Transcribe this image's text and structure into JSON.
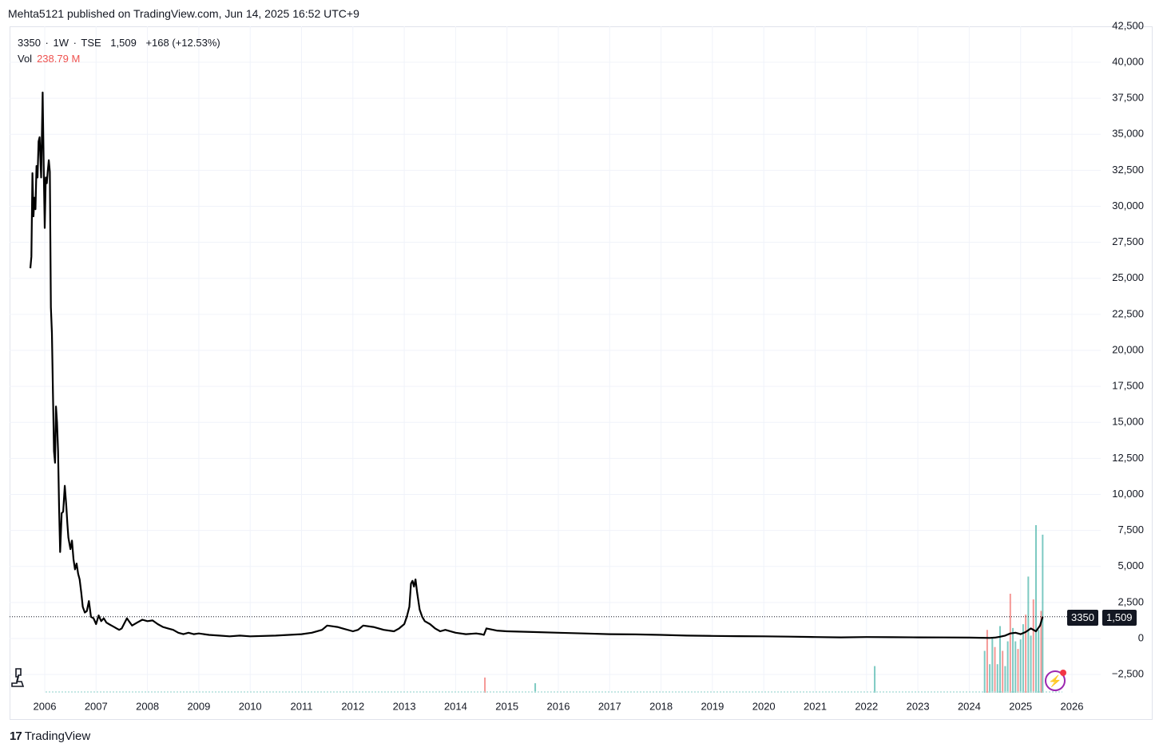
{
  "header": {
    "published": "Mehta5121 published on TradingView.com, Jun 14, 2025 16:52 UTC+9"
  },
  "legend": {
    "symbol": "3350",
    "sep1": "·",
    "interval": "1W",
    "sep2": "·",
    "exchange": "TSE",
    "last": "1,509",
    "change": "+168 (+12.53%)",
    "vol_label": "Vol",
    "vol_value": "238.79 M"
  },
  "price_tags": {
    "ticker": "3350",
    "value": "1,509"
  },
  "footer": {
    "brand": "TradingView",
    "logo_mark": "17"
  },
  "icons": {
    "bolt": "lightning-icon",
    "ruler": "measure-icon"
  },
  "colors": {
    "price_line": "#000000",
    "grid": "#f0f3fa",
    "vol_up": "#26a69a",
    "vol_down": "#ef5350",
    "vol_text": "#ef5350",
    "accent": "#9c27b0"
  },
  "chart_data": {
    "type": "line",
    "title": "",
    "xlabel": "",
    "ylabel": "",
    "x_tick_labels": [
      "2006",
      "2007",
      "2008",
      "2009",
      "2010",
      "2011",
      "2012",
      "2013",
      "2014",
      "2015",
      "2016",
      "2017",
      "2018",
      "2019",
      "2020",
      "2021",
      "2022",
      "2023",
      "2024",
      "2025",
      "2026"
    ],
    "y_tick_labels": [
      "42,500",
      "40,000",
      "37,500",
      "35,000",
      "32,500",
      "30,000",
      "27,500",
      "25,000",
      "22,500",
      "20,000",
      "17,500",
      "15,000",
      "12,500",
      "10,000",
      "7,500",
      "5,000",
      "2,500",
      "0",
      "−2,500"
    ],
    "ylim": [
      -3800,
      42500
    ],
    "xlim": [
      2005.75,
      2026.4
    ],
    "grid": true,
    "last_price": 1509,
    "series": [
      {
        "values_x": [
          2005.72,
          2005.74,
          2005.76,
          2005.78,
          2005.8,
          2005.82,
          2005.84,
          2005.86,
          2005.88,
          2005.9,
          2005.93,
          2005.96,
          2005.98,
          2006.0,
          2006.02,
          2006.04,
          2006.06,
          2006.08,
          2006.1,
          2006.12,
          2006.14,
          2006.16,
          2006.18,
          2006.2,
          2006.22,
          2006.24,
          2006.26,
          2006.28,
          2006.3,
          2006.33,
          2006.36,
          2006.39,
          2006.42,
          2006.44,
          2006.46,
          2006.48,
          2006.5,
          2006.53,
          2006.56,
          2006.59,
          2006.62,
          2006.65,
          2006.68,
          2006.71,
          2006.74,
          2006.78,
          2006.82,
          2006.86,
          2006.9,
          2006.95,
          2007.0,
          2007.05,
          2007.1,
          2007.15,
          2007.2,
          2007.25,
          2007.3,
          2007.35,
          2007.4,
          2007.45,
          2007.5,
          2007.6,
          2007.7,
          2007.8,
          2007.9,
          2008.0,
          2008.1,
          2008.2,
          2008.3,
          2008.4,
          2008.5,
          2008.6,
          2008.7,
          2008.8,
          2008.9,
          2009.0,
          2009.1,
          2009.2,
          2009.4,
          2009.6,
          2009.8,
          2010.0,
          2010.5,
          2011.0,
          2011.2,
          2011.4,
          2011.5,
          2011.6,
          2011.7,
          2011.8,
          2012.0,
          2012.1,
          2012.2,
          2012.4,
          2012.6,
          2012.8,
          2012.9,
          2013.0,
          2013.05,
          2013.1,
          2013.13,
          2013.16,
          2013.19,
          2013.22,
          2013.25,
          2013.3,
          2013.35,
          2013.4,
          2013.5,
          2013.6,
          2013.7,
          2013.8,
          2014.0,
          2014.2,
          2014.4,
          2014.5,
          2014.55,
          2014.6,
          2014.8,
          2015.0,
          2015.5,
          2016.0,
          2016.5,
          2017.0,
          2017.5,
          2018.0,
          2018.5,
          2019.0,
          2019.5,
          2020.0,
          2020.5,
          2021.0,
          2021.5,
          2022.0,
          2022.5,
          2023.0,
          2023.5,
          2024.0,
          2024.2,
          2024.4,
          2024.5,
          2024.6,
          2024.7,
          2024.8,
          2024.9,
          2025.0,
          2025.1,
          2025.2,
          2025.3,
          2025.38,
          2025.43
        ],
        "values_y": [
          25700,
          26500,
          32300,
          29300,
          30600,
          29800,
          32800,
          32000,
          34500,
          34800,
          32000,
          37900,
          32800,
          28500,
          32000,
          31600,
          32500,
          33200,
          32400,
          23000,
          21200,
          17000,
          13000,
          12200,
          16100,
          15000,
          13000,
          9000,
          6000,
          8700,
          8800,
          10600,
          9200,
          8000,
          7000,
          6600,
          6200,
          6800,
          5500,
          4800,
          5200,
          4500,
          4100,
          3200,
          2200,
          1800,
          1900,
          2600,
          1500,
          1400,
          1000,
          1600,
          1200,
          1400,
          1100,
          1000,
          900,
          800,
          700,
          600,
          700,
          1400,
          900,
          1100,
          1300,
          1200,
          1250,
          1000,
          800,
          700,
          600,
          400,
          300,
          400,
          300,
          350,
          300,
          250,
          200,
          150,
          200,
          150,
          200,
          300,
          400,
          600,
          900,
          850,
          800,
          700,
          500,
          600,
          900,
          800,
          600,
          500,
          700,
          1000,
          1500,
          2200,
          3800,
          4000,
          3600,
          4100,
          3200,
          2000,
          1500,
          1200,
          1000,
          700,
          500,
          600,
          400,
          300,
          350,
          300,
          250,
          700,
          550,
          500,
          450,
          400,
          350,
          300,
          280,
          250,
          200,
          180,
          160,
          150,
          130,
          100,
          80,
          100,
          90,
          80,
          70,
          60,
          50,
          40,
          60,
          120,
          200,
          350,
          400,
          300,
          450,
          700,
          500,
          900,
          1509
        ]
      }
    ],
    "volume": {
      "values_x": [
        2024.3,
        2024.35,
        2024.4,
        2024.45,
        2024.5,
        2024.55,
        2024.6,
        2024.65,
        2024.7,
        2024.75,
        2024.8,
        2024.85,
        2024.9,
        2024.95,
        2025.0,
        2025.05,
        2025.1,
        2025.15,
        2025.2,
        2025.25,
        2025.3,
        2025.35,
        2025.4,
        2025.43,
        2022.16,
        2014.57,
        2015.55
      ],
      "values_y": [
        2200,
        3300,
        1500,
        2900,
        2400,
        1500,
        3500,
        2200,
        1400,
        2700,
        5200,
        3400,
        2700,
        2300,
        2800,
        3600,
        4100,
        6100,
        3000,
        4900,
        8800,
        3300,
        4300,
        8300,
        1400,
        800,
        500
      ]
    }
  }
}
